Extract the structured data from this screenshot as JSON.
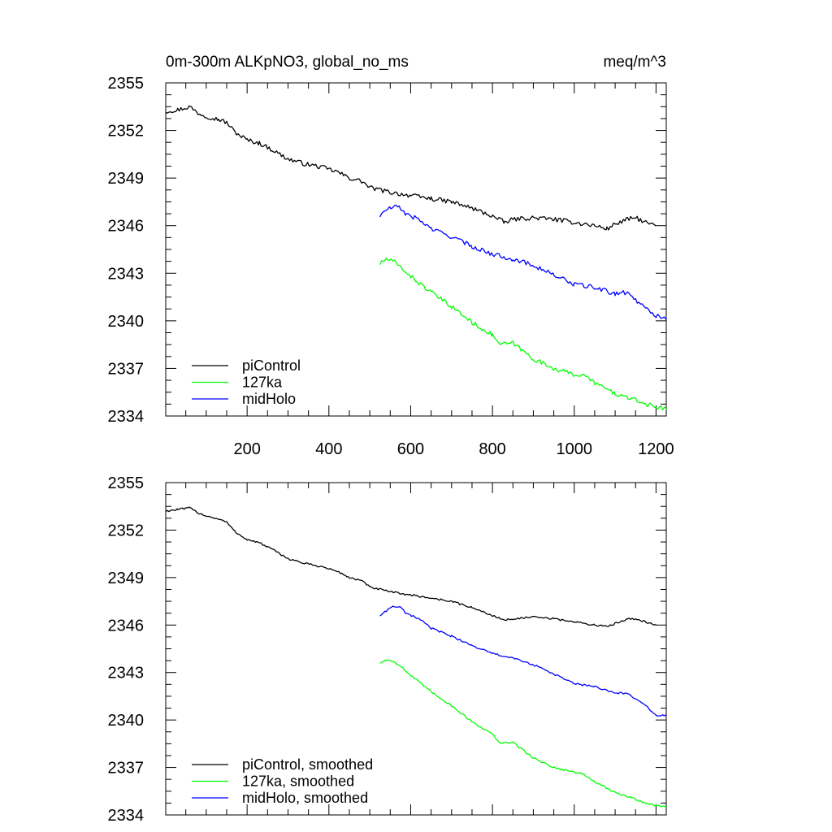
{
  "chart_data": [
    {
      "type": "line",
      "title_left": "0m-300m ALKpNO3, global_no_ms",
      "title_right": "meq/m^3",
      "xlabel": "",
      "ylabel": "",
      "xlim": [
        1,
        1225
      ],
      "ylim": [
        2334,
        2355
      ],
      "x_ticks": [
        "200",
        "400",
        "600",
        "800",
        "1000",
        "1200"
      ],
      "y_ticks": [
        "2355",
        "2352",
        "2349",
        "2346",
        "2343",
        "2340",
        "2337",
        "2334"
      ],
      "legend_position": "bottom-left",
      "series": [
        {
          "name": "piControl",
          "color": "#000000",
          "x": [
            1,
            30,
            60,
            80,
            100,
            130,
            150,
            170,
            200,
            230,
            260,
            300,
            340,
            380,
            420,
            450,
            480,
            500,
            550,
            600,
            650,
            700,
            750,
            800,
            830,
            850,
            900,
            950,
            1000,
            1050,
            1080,
            1100,
            1130,
            1150,
            1175,
            1200
          ],
          "y": [
            2353.2,
            2353.3,
            2353.5,
            2353.1,
            2352.9,
            2352.7,
            2352.5,
            2351.9,
            2351.4,
            2351.2,
            2350.8,
            2350.2,
            2349.9,
            2349.7,
            2349.4,
            2349.0,
            2348.8,
            2348.4,
            2348.1,
            2347.9,
            2347.7,
            2347.5,
            2347.1,
            2346.6,
            2346.2,
            2346.4,
            2346.5,
            2346.4,
            2346.2,
            2346.0,
            2345.8,
            2346.1,
            2346.4,
            2346.5,
            2346.2,
            2346.0
          ]
        },
        {
          "name": "127ka",
          "color": "#00ff00",
          "x": [
            525,
            540,
            560,
            580,
            600,
            650,
            700,
            750,
            800,
            820,
            850,
            880,
            900,
            950,
            1000,
            1020,
            1050,
            1100,
            1150,
            1180,
            1200,
            1225
          ],
          "y": [
            2343.6,
            2343.9,
            2343.7,
            2343.3,
            2342.8,
            2341.8,
            2340.9,
            2339.9,
            2339.1,
            2338.5,
            2338.6,
            2338.0,
            2337.6,
            2337.0,
            2336.6,
            2336.6,
            2336.1,
            2335.4,
            2335.0,
            2334.7,
            2334.6,
            2334.4
          ]
        },
        {
          "name": "midHolo",
          "color": "#0000ff",
          "x": [
            525,
            540,
            560,
            575,
            590,
            620,
            650,
            700,
            750,
            800,
            850,
            900,
            950,
            1000,
            1050,
            1100,
            1130,
            1150,
            1175,
            1200,
            1225
          ],
          "y": [
            2346.6,
            2347.0,
            2347.2,
            2347.1,
            2346.7,
            2346.4,
            2345.8,
            2345.3,
            2344.7,
            2344.2,
            2343.9,
            2343.5,
            2342.9,
            2342.3,
            2342.1,
            2341.7,
            2341.8,
            2341.3,
            2340.9,
            2340.3,
            2340.2
          ]
        }
      ]
    },
    {
      "type": "line",
      "title_left": "",
      "title_right": "",
      "xlabel": "",
      "ylabel": "",
      "xlim": [
        1,
        1225
      ],
      "ylim": [
        2334,
        2355
      ],
      "x_ticks": [],
      "y_ticks": [
        "2355",
        "2352",
        "2349",
        "2346",
        "2343",
        "2340",
        "2337",
        "2334"
      ],
      "legend_position": "bottom-left",
      "series": [
        {
          "name": "piControl, smoothed",
          "color": "#000000",
          "x": [
            1,
            30,
            60,
            80,
            100,
            130,
            150,
            170,
            200,
            230,
            260,
            300,
            340,
            380,
            420,
            450,
            480,
            500,
            550,
            600,
            650,
            700,
            750,
            800,
            830,
            850,
            900,
            950,
            1000,
            1050,
            1080,
            1100,
            1130,
            1150,
            1175,
            1200
          ],
          "y": [
            2353.2,
            2353.3,
            2353.4,
            2353.1,
            2352.9,
            2352.7,
            2352.5,
            2351.9,
            2351.4,
            2351.2,
            2350.8,
            2350.2,
            2349.9,
            2349.7,
            2349.4,
            2349.0,
            2348.8,
            2348.4,
            2348.1,
            2347.9,
            2347.7,
            2347.5,
            2347.1,
            2346.6,
            2346.3,
            2346.4,
            2346.5,
            2346.4,
            2346.2,
            2346.0,
            2345.9,
            2346.1,
            2346.4,
            2346.4,
            2346.2,
            2346.0
          ]
        },
        {
          "name": "127ka, smoothed",
          "color": "#00ff00",
          "x": [
            525,
            540,
            560,
            580,
            600,
            650,
            700,
            750,
            800,
            820,
            850,
            880,
            900,
            950,
            1000,
            1020,
            1050,
            1100,
            1150,
            1180,
            1200,
            1225
          ],
          "y": [
            2343.6,
            2343.8,
            2343.7,
            2343.3,
            2342.8,
            2341.8,
            2340.9,
            2339.9,
            2339.1,
            2338.5,
            2338.6,
            2338.0,
            2337.6,
            2337.0,
            2336.7,
            2336.6,
            2336.1,
            2335.4,
            2335.0,
            2334.7,
            2334.6,
            2334.5
          ]
        },
        {
          "name": "midHolo, smoothed",
          "color": "#0000ff",
          "x": [
            525,
            540,
            560,
            575,
            590,
            620,
            650,
            700,
            750,
            800,
            850,
            900,
            950,
            1000,
            1050,
            1100,
            1130,
            1150,
            1175,
            1200,
            1225
          ],
          "y": [
            2346.6,
            2346.9,
            2347.2,
            2347.1,
            2346.7,
            2346.4,
            2345.8,
            2345.3,
            2344.7,
            2344.2,
            2343.9,
            2343.5,
            2342.9,
            2342.3,
            2342.1,
            2341.7,
            2341.7,
            2341.3,
            2340.9,
            2340.3,
            2340.3
          ]
        }
      ]
    }
  ]
}
